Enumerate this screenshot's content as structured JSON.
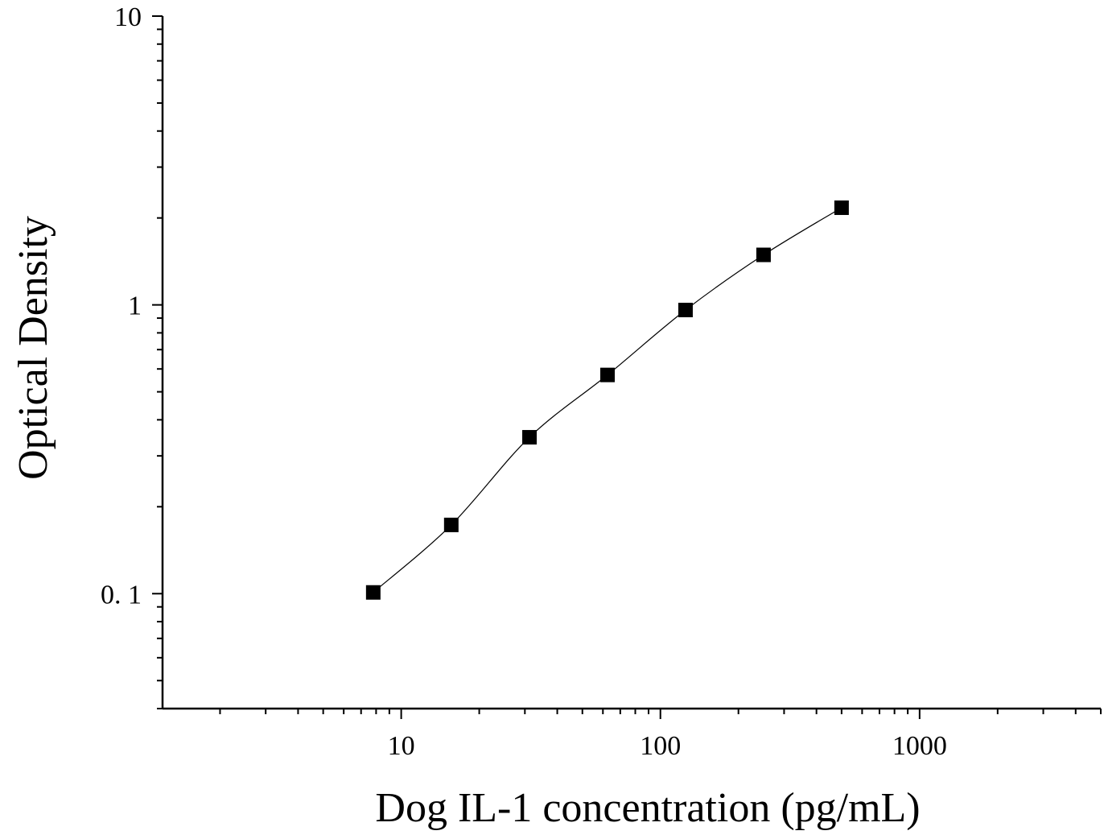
{
  "chart_data": {
    "type": "scatter",
    "title": "",
    "xlabel": "Dog  IL-1 concentration (pg/mL)",
    "ylabel": "Optical Density",
    "x_scale": "log",
    "y_scale": "log",
    "xlim": [
      1.2,
      5000
    ],
    "ylim": [
      0.04,
      10
    ],
    "x_tick_values": [
      10,
      100,
      1000
    ],
    "x_tick_labels": [
      "10",
      "100",
      "1000"
    ],
    "y_tick_values": [
      0.1,
      1,
      10
    ],
    "y_tick_labels": [
      "0. 1",
      "1",
      "10"
    ],
    "grid": false,
    "marker_color": "#000000",
    "line_color": "#000000",
    "series": [
      {
        "marker": "square",
        "fit_line": true,
        "x": [
          7.8,
          15.6,
          31.25,
          62.5,
          125,
          250,
          500
        ],
        "y": [
          0.101,
          0.173,
          0.348,
          0.572,
          0.96,
          1.49,
          2.17
        ]
      }
    ]
  }
}
